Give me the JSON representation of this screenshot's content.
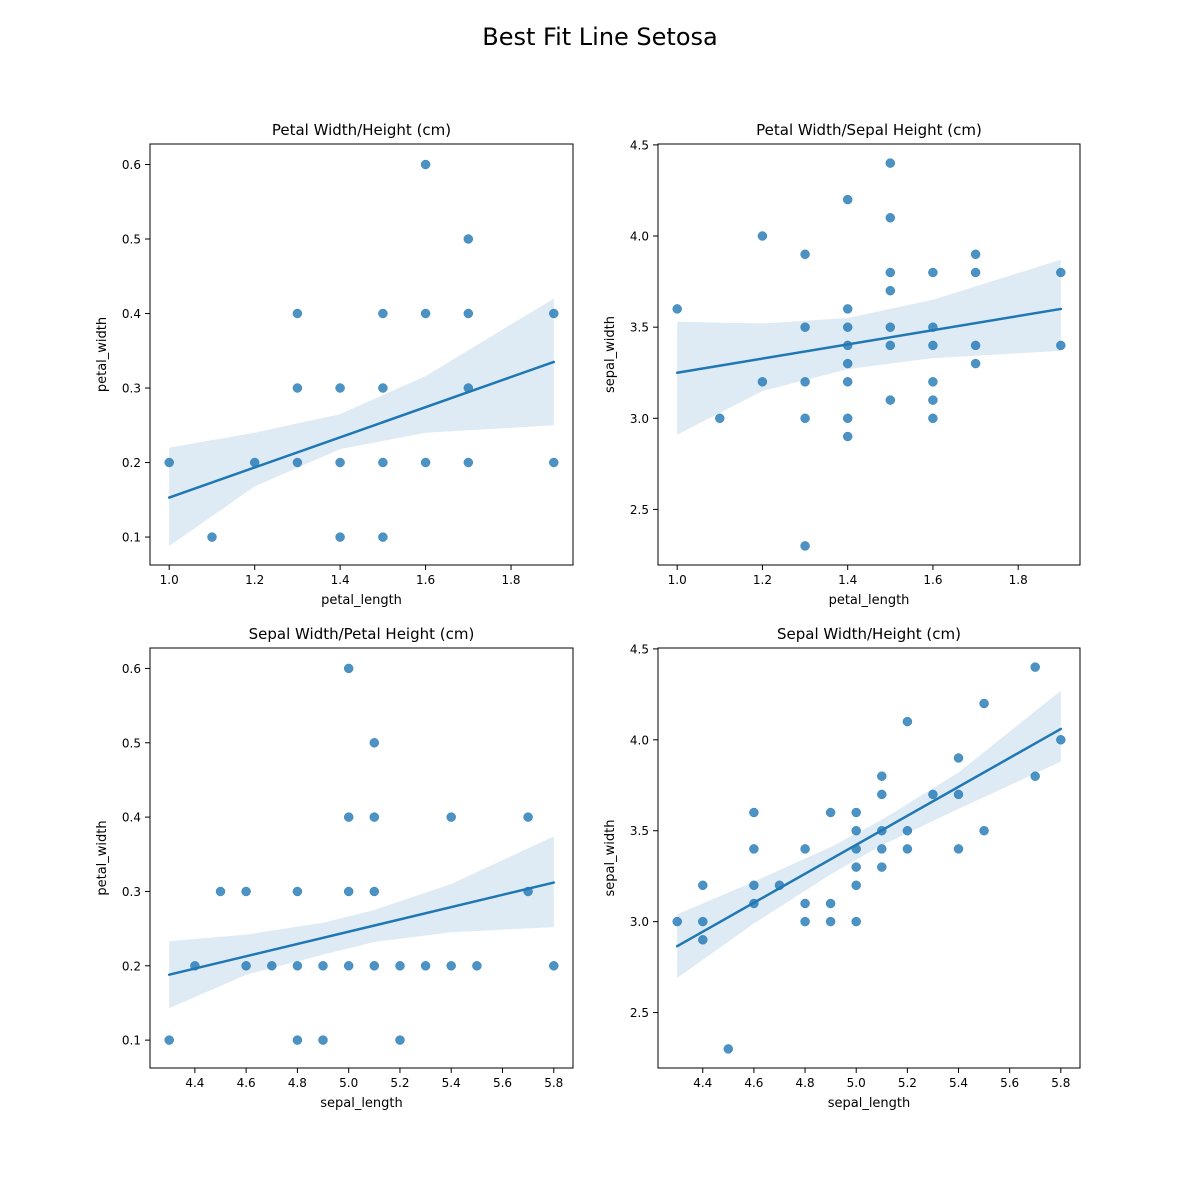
{
  "figure": {
    "suptitle": "Best Fit Line Setosa",
    "colors": {
      "points": "#1f77b4",
      "line": "#1f77b4",
      "band": "#1f77b4"
    }
  },
  "chart_data": [
    {
      "type": "scatter",
      "title": "Petal Width/Height (cm)",
      "xlabel": "petal_length",
      "ylabel": "petal_width",
      "xlim": [
        0.955,
        1.945
      ],
      "ylim": [
        0.0625,
        0.6275
      ],
      "xticks": [
        "1.0",
        "1.2",
        "1.4",
        "1.6",
        "1.8"
      ],
      "yticks": [
        "0.1",
        "0.2",
        "0.3",
        "0.4",
        "0.5",
        "0.6"
      ],
      "points": [
        [
          1.0,
          0.2
        ],
        [
          1.1,
          0.1
        ],
        [
          1.2,
          0.2
        ],
        [
          1.3,
          0.4
        ],
        [
          1.3,
          0.3
        ],
        [
          1.3,
          0.2
        ],
        [
          1.4,
          0.3
        ],
        [
          1.4,
          0.2
        ],
        [
          1.4,
          0.1
        ],
        [
          1.5,
          0.4
        ],
        [
          1.5,
          0.3
        ],
        [
          1.5,
          0.2
        ],
        [
          1.5,
          0.1
        ],
        [
          1.6,
          0.6
        ],
        [
          1.6,
          0.4
        ],
        [
          1.6,
          0.2
        ],
        [
          1.7,
          0.5
        ],
        [
          1.7,
          0.4
        ],
        [
          1.7,
          0.3
        ],
        [
          1.7,
          0.2
        ],
        [
          1.9,
          0.4
        ],
        [
          1.9,
          0.2
        ]
      ],
      "fit": {
        "x": [
          1.0,
          1.9
        ],
        "y": [
          0.153,
          0.335
        ]
      },
      "band": {
        "x": [
          1.0,
          1.2,
          1.4,
          1.6,
          1.9
        ],
        "lower": [
          0.088,
          0.168,
          0.218,
          0.24,
          0.25
        ],
        "upper": [
          0.22,
          0.24,
          0.265,
          0.316,
          0.42
        ]
      }
    },
    {
      "type": "scatter",
      "title": "Petal Width/Sepal Height (cm)",
      "xlabel": "petal_length",
      "ylabel": "sepal_width",
      "xlim": [
        0.955,
        1.945
      ],
      "ylim": [
        2.195,
        4.505
      ],
      "xticks": [
        "1.0",
        "1.2",
        "1.4",
        "1.6",
        "1.8"
      ],
      "yticks": [
        "2.5",
        "3.0",
        "3.5",
        "4.0",
        "4.5"
      ],
      "points": [
        [
          1.0,
          3.6
        ],
        [
          1.1,
          3.0
        ],
        [
          1.2,
          4.0
        ],
        [
          1.2,
          3.2
        ],
        [
          1.3,
          3.9
        ],
        [
          1.3,
          3.5
        ],
        [
          1.3,
          3.2
        ],
        [
          1.3,
          3.0
        ],
        [
          1.3,
          2.3
        ],
        [
          1.4,
          4.2
        ],
        [
          1.4,
          3.6
        ],
        [
          1.4,
          3.5
        ],
        [
          1.4,
          3.4
        ],
        [
          1.4,
          3.3
        ],
        [
          1.4,
          3.2
        ],
        [
          1.4,
          3.0
        ],
        [
          1.4,
          2.9
        ],
        [
          1.5,
          4.4
        ],
        [
          1.5,
          4.1
        ],
        [
          1.5,
          3.8
        ],
        [
          1.5,
          3.7
        ],
        [
          1.5,
          3.5
        ],
        [
          1.5,
          3.4
        ],
        [
          1.5,
          3.1
        ],
        [
          1.6,
          3.8
        ],
        [
          1.6,
          3.5
        ],
        [
          1.6,
          3.4
        ],
        [
          1.6,
          3.2
        ],
        [
          1.6,
          3.1
        ],
        [
          1.6,
          3.0
        ],
        [
          1.7,
          3.9
        ],
        [
          1.7,
          3.8
        ],
        [
          1.7,
          3.4
        ],
        [
          1.7,
          3.3
        ],
        [
          1.9,
          3.8
        ],
        [
          1.9,
          3.4
        ]
      ],
      "fit": {
        "x": [
          1.0,
          1.9
        ],
        "y": [
          3.25,
          3.6
        ]
      },
      "band": {
        "x": [
          1.0,
          1.2,
          1.4,
          1.6,
          1.9
        ],
        "lower": [
          2.91,
          3.15,
          3.27,
          3.33,
          3.37
        ],
        "upper": [
          3.53,
          3.52,
          3.55,
          3.65,
          3.87
        ]
      }
    },
    {
      "type": "scatter",
      "title": "Sepal Width/Petal Height (cm)",
      "xlabel": "sepal_length",
      "ylabel": "petal_width",
      "xlim": [
        4.225,
        5.875
      ],
      "ylim": [
        0.0625,
        0.6275
      ],
      "xticks": [
        "4.4",
        "4.6",
        "4.8",
        "5.0",
        "5.2",
        "5.4",
        "5.6",
        "5.8"
      ],
      "yticks": [
        "0.1",
        "0.2",
        "0.3",
        "0.4",
        "0.5",
        "0.6"
      ],
      "points": [
        [
          4.3,
          0.1
        ],
        [
          4.4,
          0.2
        ],
        [
          4.5,
          0.3
        ],
        [
          4.6,
          0.3
        ],
        [
          4.6,
          0.2
        ],
        [
          4.7,
          0.2
        ],
        [
          4.8,
          0.3
        ],
        [
          4.8,
          0.2
        ],
        [
          4.8,
          0.1
        ],
        [
          4.9,
          0.2
        ],
        [
          4.9,
          0.1
        ],
        [
          5.0,
          0.6
        ],
        [
          5.0,
          0.4
        ],
        [
          5.0,
          0.3
        ],
        [
          5.0,
          0.2
        ],
        [
          5.1,
          0.5
        ],
        [
          5.1,
          0.4
        ],
        [
          5.1,
          0.3
        ],
        [
          5.1,
          0.2
        ],
        [
          5.2,
          0.2
        ],
        [
          5.2,
          0.1
        ],
        [
          5.3,
          0.2
        ],
        [
          5.4,
          0.4
        ],
        [
          5.4,
          0.2
        ],
        [
          5.5,
          0.2
        ],
        [
          5.7,
          0.4
        ],
        [
          5.7,
          0.3
        ],
        [
          5.8,
          0.2
        ]
      ],
      "fit": {
        "x": [
          4.3,
          5.8
        ],
        "y": [
          0.188,
          0.312
        ]
      },
      "band": {
        "x": [
          4.3,
          4.6,
          4.9,
          5.1,
          5.4,
          5.8
        ],
        "lower": [
          0.143,
          0.188,
          0.215,
          0.232,
          0.245,
          0.252
        ],
        "upper": [
          0.233,
          0.242,
          0.258,
          0.275,
          0.31,
          0.374
        ]
      }
    },
    {
      "type": "scatter",
      "title": "Sepal Width/Height (cm)",
      "xlabel": "sepal_length",
      "ylabel": "sepal_width",
      "xlim": [
        4.225,
        5.875
      ],
      "ylim": [
        2.195,
        4.505
      ],
      "xticks": [
        "4.4",
        "4.6",
        "4.8",
        "5.0",
        "5.2",
        "5.4",
        "5.6",
        "5.8"
      ],
      "yticks": [
        "2.5",
        "3.0",
        "3.5",
        "4.0",
        "4.5"
      ],
      "points": [
        [
          4.3,
          3.0
        ],
        [
          4.4,
          3.2
        ],
        [
          4.4,
          3.0
        ],
        [
          4.4,
          2.9
        ],
        [
          4.5,
          2.3
        ],
        [
          4.6,
          3.6
        ],
        [
          4.6,
          3.4
        ],
        [
          4.6,
          3.2
        ],
        [
          4.6,
          3.1
        ],
        [
          4.7,
          3.2
        ],
        [
          4.8,
          3.4
        ],
        [
          4.8,
          3.1
        ],
        [
          4.8,
          3.0
        ],
        [
          4.9,
          3.6
        ],
        [
          4.9,
          3.1
        ],
        [
          4.9,
          3.0
        ],
        [
          5.0,
          3.6
        ],
        [
          5.0,
          3.5
        ],
        [
          5.0,
          3.4
        ],
        [
          5.0,
          3.3
        ],
        [
          5.0,
          3.2
        ],
        [
          5.0,
          3.0
        ],
        [
          5.1,
          3.8
        ],
        [
          5.1,
          3.7
        ],
        [
          5.1,
          3.5
        ],
        [
          5.1,
          3.4
        ],
        [
          5.1,
          3.3
        ],
        [
          5.2,
          4.1
        ],
        [
          5.2,
          3.5
        ],
        [
          5.2,
          3.4
        ],
        [
          5.3,
          3.7
        ],
        [
          5.4,
          3.9
        ],
        [
          5.4,
          3.7
        ],
        [
          5.4,
          3.4
        ],
        [
          5.5,
          4.2
        ],
        [
          5.5,
          3.5
        ],
        [
          5.7,
          4.4
        ],
        [
          5.7,
          3.8
        ],
        [
          5.8,
          4.0
        ]
      ],
      "fit": {
        "x": [
          4.3,
          5.8
        ],
        "y": [
          2.865,
          4.06
        ]
      },
      "band": {
        "x": [
          4.3,
          4.6,
          4.9,
          5.1,
          5.4,
          5.8
        ],
        "lower": [
          2.69,
          2.99,
          3.26,
          3.42,
          3.62,
          3.88
        ],
        "upper": [
          3.04,
          3.22,
          3.41,
          3.56,
          3.82,
          4.27
        ]
      }
    }
  ]
}
